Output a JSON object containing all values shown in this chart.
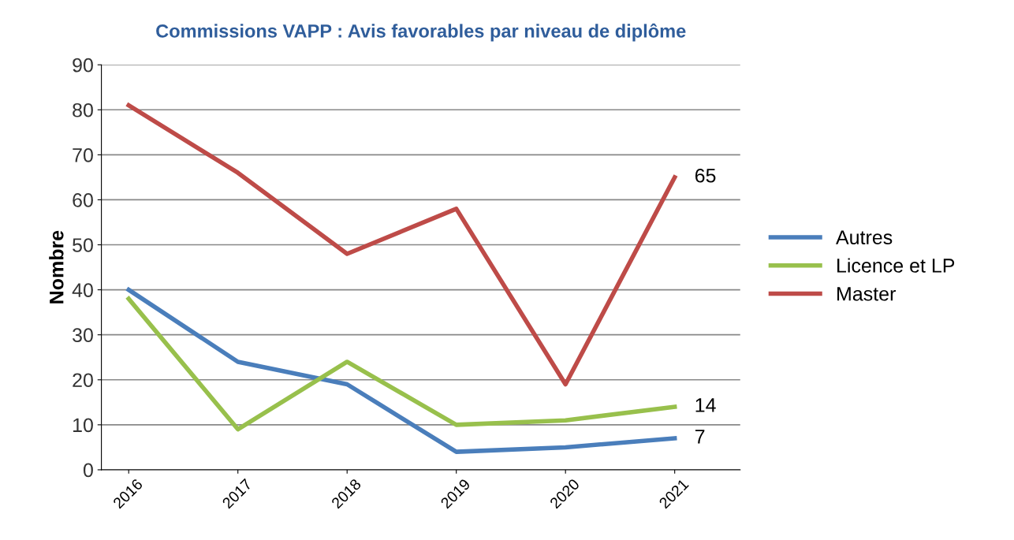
{
  "chart_data": {
    "type": "line",
    "title": "Commissions VAPP : Avis favorables par niveau de diplôme",
    "ylabel": "Nombre",
    "categories": [
      "2016",
      "2017",
      "2018",
      "2019",
      "2020",
      "2021"
    ],
    "series": [
      {
        "name": "Autres",
        "color": "#4a7ebb",
        "values": [
          40,
          24,
          19,
          4,
          5,
          7
        ]
      },
      {
        "name": "Licence et LP",
        "color": "#98c04c",
        "values": [
          38,
          9,
          24,
          10,
          11,
          14
        ]
      },
      {
        "name": "Master",
        "color": "#be4b48",
        "values": [
          81,
          66,
          48,
          58,
          19,
          65
        ]
      }
    ],
    "annotations": [
      {
        "text": "65",
        "x": "2021",
        "y": 65
      },
      {
        "text": "14",
        "x": "2021",
        "y": 14
      },
      {
        "text": "7",
        "x": "2021",
        "y": 7
      }
    ],
    "ylim": [
      0,
      90
    ],
    "yticks": [
      0,
      10,
      20,
      30,
      40,
      50,
      60,
      70,
      80,
      90
    ],
    "grid": "y",
    "legend": "right",
    "marker": "none",
    "line_style": "solid"
  }
}
